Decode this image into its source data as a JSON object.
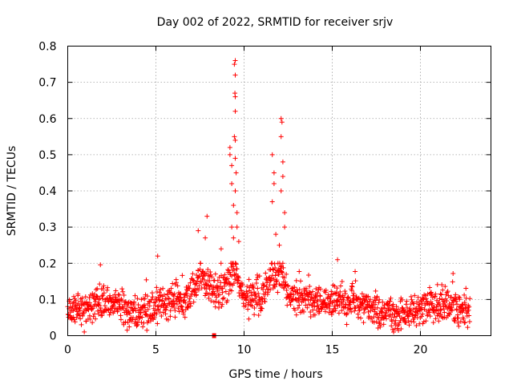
{
  "chart_data": {
    "type": "scatter",
    "title": "Day 002 of 2022, SRMTID for receiver srjv",
    "xlabel": "GPS time / hours",
    "ylabel": "SRMTID / TECUs",
    "xlim": [
      0,
      24
    ],
    "ylim": [
      0,
      0.8
    ],
    "xticks": [
      0,
      5,
      10,
      15,
      20
    ],
    "yticks": [
      0,
      0.1,
      0.2,
      0.3,
      0.4,
      0.5,
      0.6,
      0.7,
      0.8
    ],
    "xtick_labels": [
      "0",
      "5",
      "10",
      "15",
      "20"
    ],
    "ytick_labels": [
      "0",
      "0.1",
      "0.2",
      "0.3",
      "0.4",
      "0.5",
      "0.6",
      "0.7",
      "0.8"
    ],
    "grid": true,
    "marker": "+",
    "color": "#ff0000",
    "series": [
      {
        "name": "SRMTID",
        "x_start": 0,
        "x_end": 22.8,
        "num_points": 1400,
        "baseline": [
          [
            0,
            0.06
          ],
          [
            1,
            0.07
          ],
          [
            1.5,
            0.09
          ],
          [
            2,
            0.1
          ],
          [
            2.5,
            0.09
          ],
          [
            3,
            0.08
          ],
          [
            3.5,
            0.07
          ],
          [
            4,
            0.06
          ],
          [
            4.5,
            0.07
          ],
          [
            5,
            0.08
          ],
          [
            5.5,
            0.09
          ],
          [
            6,
            0.1
          ],
          [
            6.5,
            0.09
          ],
          [
            7,
            0.12
          ],
          [
            7.5,
            0.16
          ],
          [
            8,
            0.15
          ],
          [
            8.5,
            0.11
          ],
          [
            9,
            0.14
          ],
          [
            9.5,
            0.18
          ],
          [
            10,
            0.1
          ],
          [
            10.5,
            0.11
          ],
          [
            11,
            0.1
          ],
          [
            11.5,
            0.16
          ],
          [
            12,
            0.18
          ],
          [
            12.5,
            0.12
          ],
          [
            13,
            0.1
          ],
          [
            14,
            0.09
          ],
          [
            15,
            0.1
          ],
          [
            15.5,
            0.09
          ],
          [
            16,
            0.09
          ],
          [
            16.5,
            0.08
          ],
          [
            17,
            0.08
          ],
          [
            18,
            0.06
          ],
          [
            19,
            0.06
          ],
          [
            20,
            0.08
          ],
          [
            21,
            0.09
          ],
          [
            22,
            0.08
          ],
          [
            22.8,
            0.07
          ]
        ],
        "highlights": [
          [
            9.2,
            0.52
          ],
          [
            9.2,
            0.5
          ],
          [
            9.3,
            0.47
          ],
          [
            9.3,
            0.42
          ],
          [
            9.4,
            0.36
          ],
          [
            9.45,
            0.75
          ],
          [
            9.5,
            0.76
          ],
          [
            9.5,
            0.72
          ],
          [
            9.48,
            0.67
          ],
          [
            9.5,
            0.66
          ],
          [
            9.5,
            0.62
          ],
          [
            9.45,
            0.55
          ],
          [
            9.5,
            0.54
          ],
          [
            9.5,
            0.49
          ],
          [
            9.55,
            0.45
          ],
          [
            9.6,
            0.34
          ],
          [
            9.6,
            0.3
          ],
          [
            9.4,
            0.27
          ],
          [
            9.7,
            0.26
          ],
          [
            9.3,
            0.3
          ],
          [
            9.5,
            0.4
          ],
          [
            11.6,
            0.5
          ],
          [
            11.7,
            0.45
          ],
          [
            11.7,
            0.42
          ],
          [
            11.6,
            0.37
          ],
          [
            12.1,
            0.6
          ],
          [
            12.15,
            0.59
          ],
          [
            12.1,
            0.55
          ],
          [
            12.2,
            0.48
          ],
          [
            12.2,
            0.44
          ],
          [
            12.3,
            0.34
          ],
          [
            12.1,
            0.4
          ],
          [
            12.3,
            0.3
          ],
          [
            11.8,
            0.28
          ],
          [
            12.0,
            0.25
          ],
          [
            7.9,
            0.33
          ],
          [
            7.4,
            0.29
          ],
          [
            7.8,
            0.27
          ],
          [
            5.1,
            0.22
          ],
          [
            15.3,
            0.21
          ],
          [
            8.7,
            0.24
          ]
        ],
        "marker_at_zero": [
          8.3,
          0.0
        ]
      }
    ]
  }
}
